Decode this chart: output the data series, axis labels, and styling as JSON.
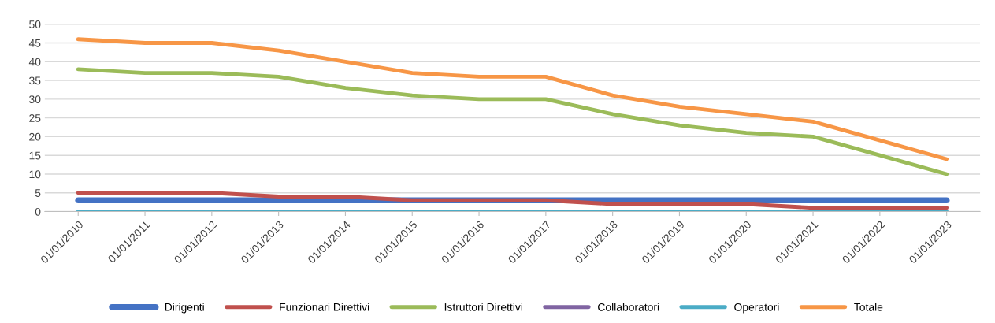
{
  "chart_data": {
    "type": "line",
    "categories": [
      "01/01/2010",
      "01/01/2011",
      "01/01/2012",
      "01/01/2013",
      "01/01/2014",
      "01/01/2015",
      "01/01/2016",
      "01/01/2017",
      "01/01/2018",
      "01/01/2019",
      "01/01/2020",
      "01/01/2021",
      "01/01/2022",
      "01/01/2023"
    ],
    "series": [
      {
        "name": "Dirigenti",
        "color": "#4472c4",
        "values": [
          3,
          3,
          3,
          3,
          3,
          3,
          3,
          3,
          3,
          3,
          3,
          3,
          3,
          3
        ]
      },
      {
        "name": "Funzionari Direttivi",
        "color": "#c0504d",
        "values": [
          5,
          5,
          5,
          4,
          4,
          3,
          3,
          3,
          2,
          2,
          2,
          1,
          1,
          1
        ]
      },
      {
        "name": "Istruttori Direttivi",
        "color": "#9bbb59",
        "values": [
          38,
          37,
          37,
          36,
          33,
          31,
          30,
          30,
          26,
          23,
          21,
          20,
          15,
          10
        ]
      },
      {
        "name": "Collaboratori",
        "color": "#8064a2",
        "values": [
          null,
          null,
          null,
          null,
          null,
          null,
          null,
          null,
          null,
          null,
          null,
          null,
          null,
          null
        ]
      },
      {
        "name": "Operatori",
        "color": "#4bacc6",
        "values": [
          0,
          0,
          0,
          0,
          0,
          0,
          0,
          0,
          0,
          0,
          0,
          0,
          0,
          0
        ]
      },
      {
        "name": "Totale",
        "color": "#f79646",
        "values": [
          46,
          45,
          45,
          43,
          40,
          37,
          36,
          36,
          31,
          28,
          26,
          24,
          19,
          14
        ]
      }
    ],
    "ylim": [
      0,
      50
    ],
    "yticks": [
      0,
      5,
      10,
      15,
      20,
      25,
      30,
      35,
      40,
      45,
      50
    ],
    "grid": "y",
    "legend": "bottom",
    "marker": "none",
    "line_style": "solid"
  }
}
